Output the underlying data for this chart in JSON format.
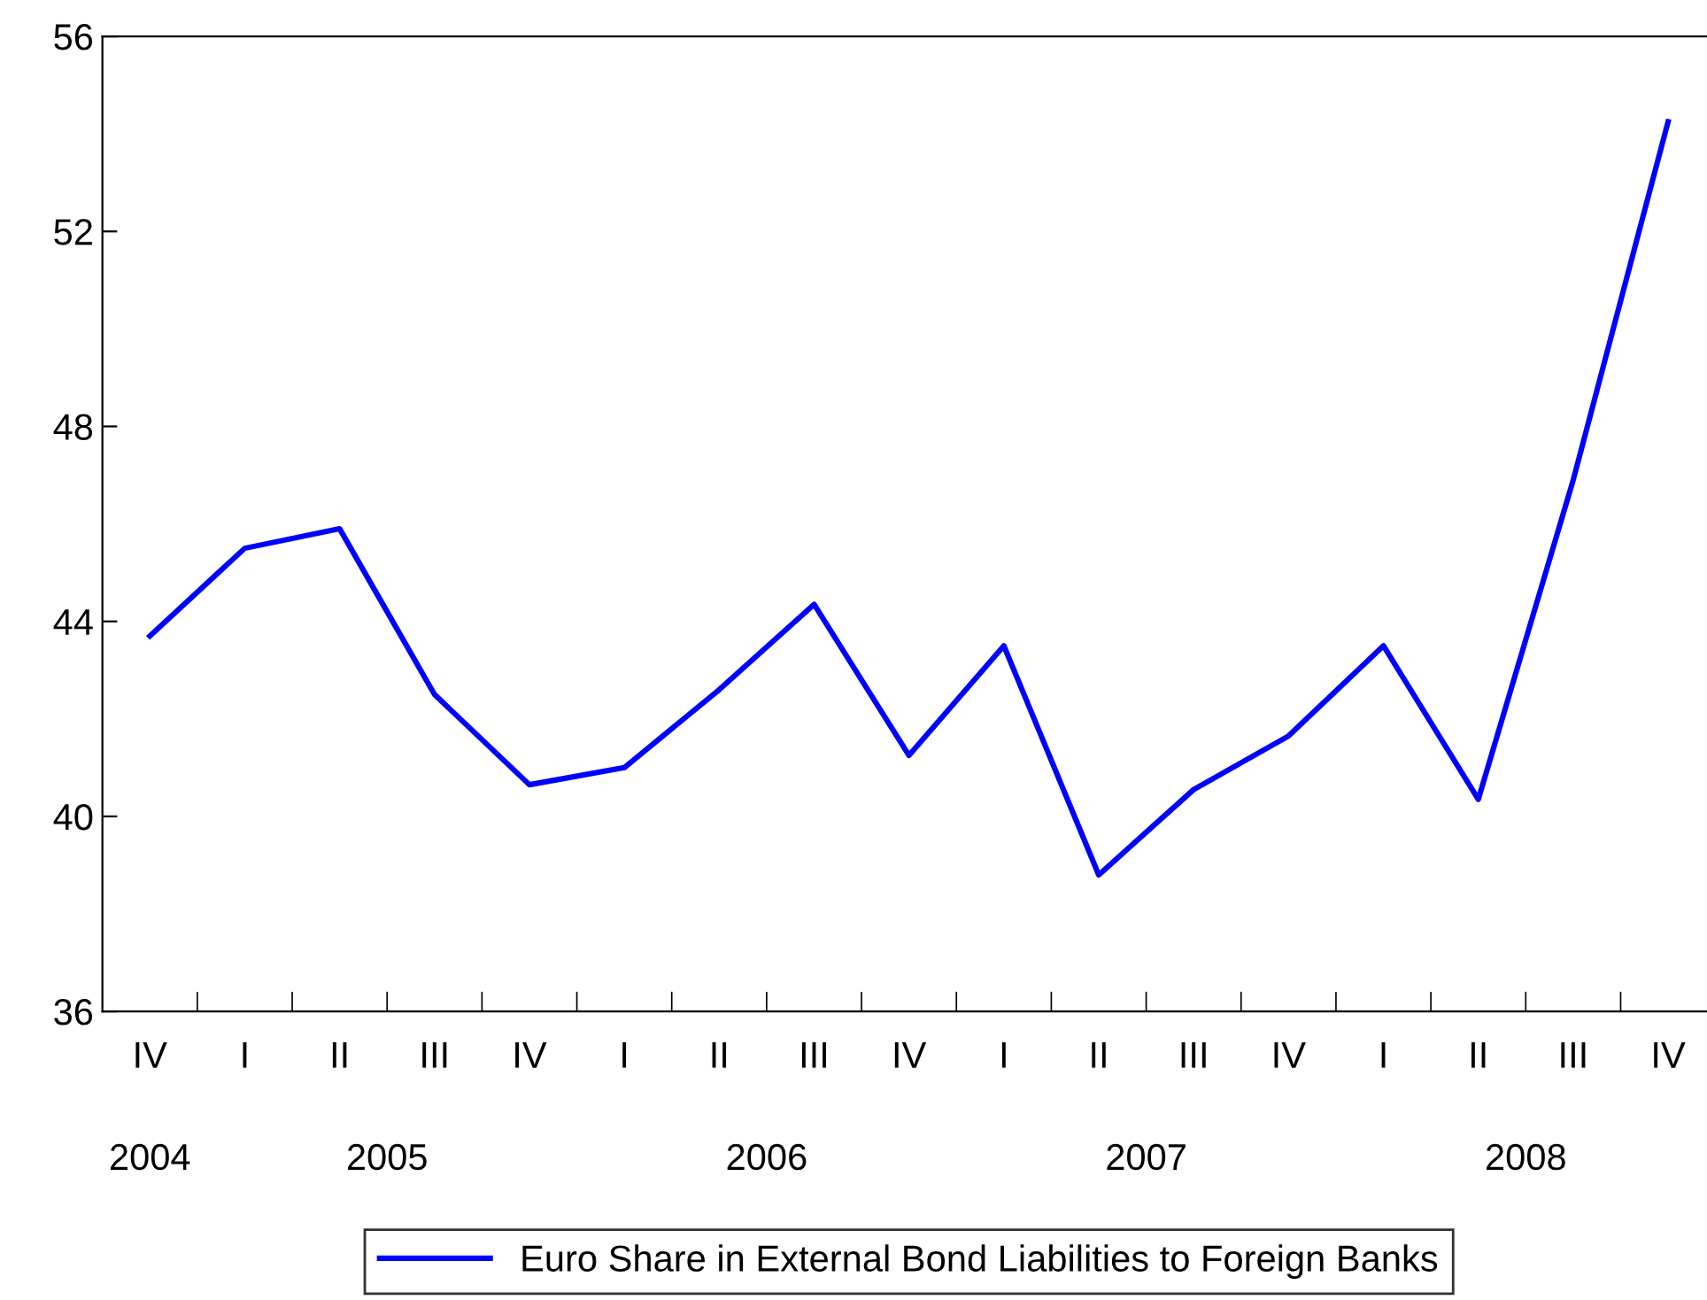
{
  "chart_data": {
    "type": "line",
    "categories": [
      "IV",
      "I",
      "II",
      "III",
      "IV",
      "I",
      "II",
      "III",
      "IV",
      "I",
      "II",
      "III",
      "IV",
      "I",
      "II",
      "III",
      "IV"
    ],
    "series": [
      {
        "name": "Euro Share in External Bond Liabilities to Foreign Banks",
        "color": "#0000ff",
        "values": [
          43.7,
          45.5,
          45.9,
          42.5,
          40.65,
          41.0,
          42.6,
          44.35,
          41.25,
          43.5,
          38.8,
          40.55,
          41.65,
          43.5,
          40.35,
          46.9,
          54.25
        ]
      }
    ],
    "ylim": [
      36,
      56
    ],
    "yticks": [
      36,
      40,
      44,
      48,
      52,
      56
    ],
    "annotations": [
      "2004",
      "2005",
      "2006",
      "2007",
      "2008"
    ],
    "legend": "bottom",
    "grid": false,
    "marker": "none",
    "line_style": "solid"
  }
}
